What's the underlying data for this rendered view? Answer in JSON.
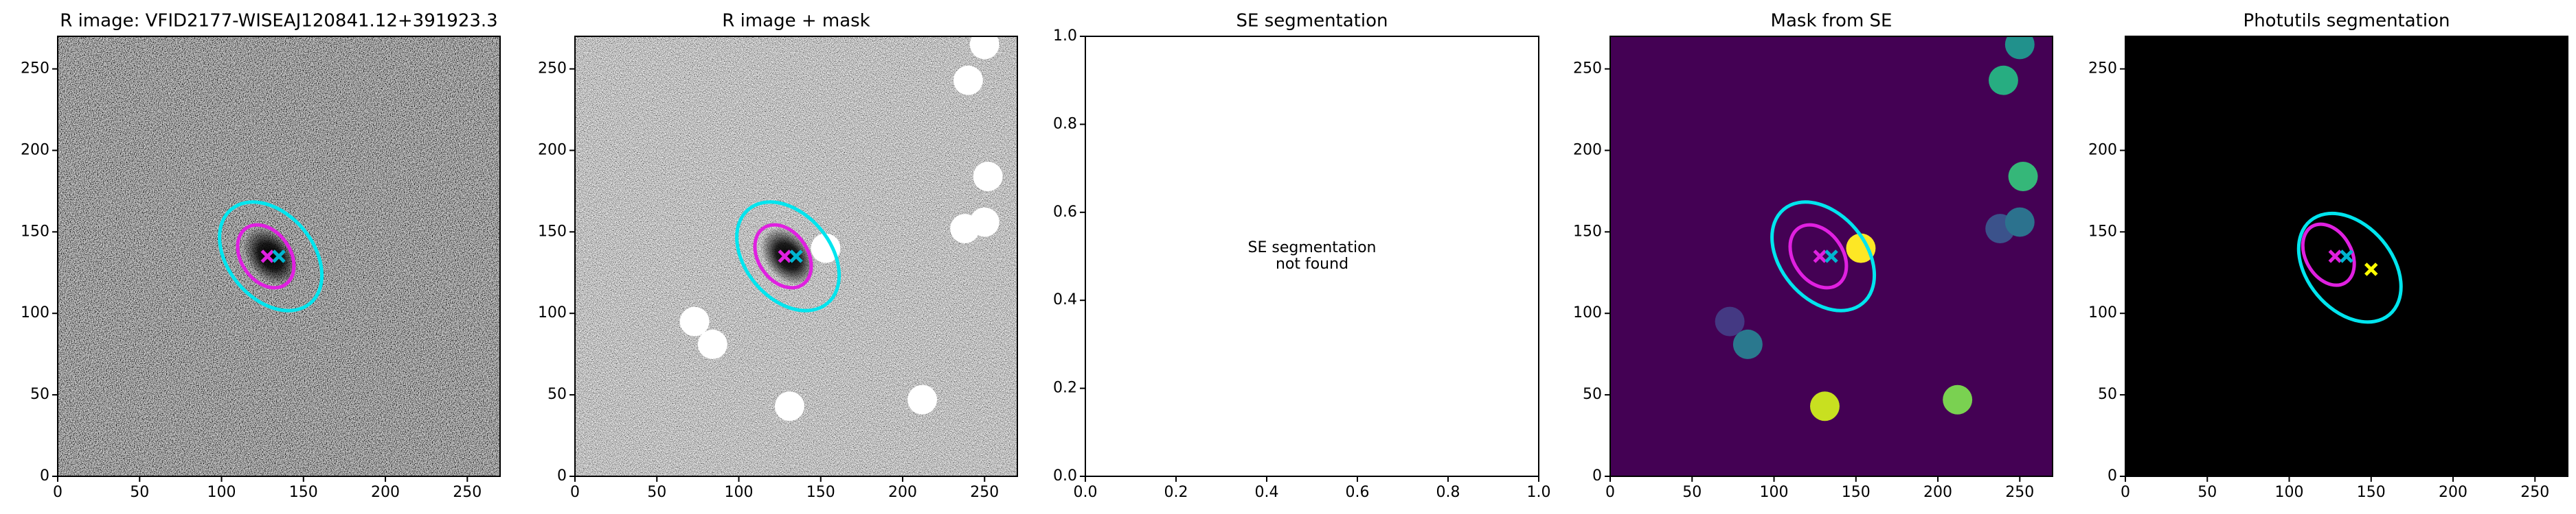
{
  "chart_data": [
    {
      "type": "image",
      "title": "R image: VFID2177-WISEAJ120841.12+391923.3",
      "noise": "dark",
      "xlim": [
        0,
        270
      ],
      "ylim": [
        0,
        270
      ],
      "xticks": [
        0,
        50,
        100,
        150,
        200,
        250
      ],
      "yticks": [
        0,
        50,
        100,
        150,
        200,
        250
      ],
      "ellipses": [
        {
          "x": 130,
          "y": 135,
          "width": 75,
          "height": 52,
          "angle": -50,
          "color": "#00e5ee"
        },
        {
          "x": 127,
          "y": 135,
          "width": 42,
          "height": 30,
          "angle": -55,
          "color": "#e020e0"
        }
      ],
      "markers": [
        {
          "x": 128,
          "y": 135,
          "color": "#e020e0"
        },
        {
          "x": 135,
          "y": 135,
          "color": "#00b5d0"
        }
      ]
    },
    {
      "type": "image",
      "title": "R image + mask",
      "noise": "light",
      "xlim": [
        0,
        270
      ],
      "ylim": [
        0,
        270
      ],
      "xticks": [
        0,
        50,
        100,
        150,
        200,
        250
      ],
      "yticks": [
        0,
        50,
        100,
        150,
        200,
        250
      ],
      "ellipses": [
        {
          "x": 130,
          "y": 135,
          "width": 75,
          "height": 52,
          "angle": -50,
          "color": "#00e5ee"
        },
        {
          "x": 127,
          "y": 135,
          "width": 42,
          "height": 30,
          "angle": -55,
          "color": "#e020e0"
        }
      ],
      "markers": [
        {
          "x": 128,
          "y": 135,
          "color": "#e020e0"
        },
        {
          "x": 135,
          "y": 135,
          "color": "#00b5d0"
        }
      ],
      "masks": [
        {
          "x": 250,
          "y": 265,
          "r": 9,
          "color": "#ffffff"
        },
        {
          "x": 240,
          "y": 243,
          "r": 9,
          "color": "#ffffff"
        },
        {
          "x": 252,
          "y": 184,
          "r": 9,
          "color": "#ffffff"
        },
        {
          "x": 238,
          "y": 152,
          "r": 9,
          "color": "#ffffff"
        },
        {
          "x": 250,
          "y": 156,
          "r": 9,
          "color": "#ffffff"
        },
        {
          "x": 73,
          "y": 95,
          "r": 9,
          "color": "#ffffff"
        },
        {
          "x": 84,
          "y": 81,
          "r": 9,
          "color": "#ffffff"
        },
        {
          "x": 131,
          "y": 43,
          "r": 9,
          "color": "#ffffff"
        },
        {
          "x": 212,
          "y": 47,
          "r": 9,
          "color": "#ffffff"
        },
        {
          "x": 153,
          "y": 140,
          "r": 9,
          "color": "#ffffff"
        }
      ]
    },
    {
      "type": "empty",
      "title": "SE segmentation",
      "annotation": [
        "SE segmentation",
        "not found"
      ],
      "xlim": [
        0,
        1
      ],
      "ylim": [
        0,
        1
      ],
      "xticks": [
        {
          "value": 0,
          "label": "0.0"
        },
        {
          "value": 0.2,
          "label": "0.2"
        },
        {
          "value": 0.4,
          "label": "0.4"
        },
        {
          "value": 0.6,
          "label": "0.6"
        },
        {
          "value": 0.8,
          "label": "0.8"
        },
        {
          "value": 1,
          "label": "1.0"
        }
      ],
      "yticks": [
        {
          "value": 0,
          "label": "0.0"
        },
        {
          "value": 0.2,
          "label": "0.2"
        },
        {
          "value": 0.4,
          "label": "0.4"
        },
        {
          "value": 0.6,
          "label": "0.6"
        },
        {
          "value": 0.8,
          "label": "0.8"
        },
        {
          "value": 1,
          "label": "1.0"
        }
      ]
    },
    {
      "type": "image",
      "title": "Mask from SE",
      "background": "#440154",
      "xlim": [
        0,
        270
      ],
      "ylim": [
        0,
        270
      ],
      "xticks": [
        0,
        50,
        100,
        150,
        200,
        250
      ],
      "yticks": [
        0,
        50,
        100,
        150,
        200,
        250
      ],
      "masks": [
        {
          "x": 250,
          "y": 265,
          "r": 9,
          "color": "#21918c"
        },
        {
          "x": 240,
          "y": 243,
          "r": 9,
          "color": "#27ad81"
        },
        {
          "x": 252,
          "y": 184,
          "r": 9,
          "color": "#35b779"
        },
        {
          "x": 238,
          "y": 152,
          "r": 9,
          "color": "#3b528b"
        },
        {
          "x": 250,
          "y": 156,
          "r": 9,
          "color": "#2c728e"
        },
        {
          "x": 73,
          "y": 95,
          "r": 9,
          "color": "#443983"
        },
        {
          "x": 84,
          "y": 81,
          "r": 9,
          "color": "#2a788e"
        },
        {
          "x": 131,
          "y": 43,
          "r": 9,
          "color": "#c8e020"
        },
        {
          "x": 212,
          "y": 47,
          "r": 9,
          "color": "#7ad151"
        },
        {
          "x": 153,
          "y": 140,
          "r": 9,
          "color": "#fde725"
        }
      ],
      "ellipses": [
        {
          "x": 130,
          "y": 135,
          "width": 75,
          "height": 52,
          "angle": -50,
          "color": "#00e5ee"
        },
        {
          "x": 127,
          "y": 135,
          "width": 42,
          "height": 30,
          "angle": -55,
          "color": "#e020e0"
        }
      ],
      "markers": [
        {
          "x": 128,
          "y": 135,
          "color": "#e020e0"
        },
        {
          "x": 135,
          "y": 135,
          "color": "#00b5d0"
        }
      ]
    },
    {
      "type": "image",
      "title": "Photutils segmentation",
      "background": "#000000",
      "xlim": [
        0,
        270
      ],
      "ylim": [
        0,
        270
      ],
      "xticks": [
        0,
        50,
        100,
        150,
        200,
        250
      ],
      "yticks": [
        0,
        50,
        100,
        150,
        200,
        250
      ],
      "ellipses": [
        {
          "x": 137,
          "y": 128,
          "width": 75,
          "height": 52,
          "angle": -50,
          "color": "#00e5ee"
        },
        {
          "x": 124,
          "y": 136,
          "width": 40,
          "height": 28,
          "angle": -60,
          "color": "#e020e0"
        }
      ],
      "markers": [
        {
          "x": 128,
          "y": 135,
          "color": "#e020e0"
        },
        {
          "x": 135,
          "y": 135,
          "color": "#00b5d0"
        },
        {
          "x": 150,
          "y": 127,
          "color": "#ffff00"
        }
      ]
    }
  ]
}
